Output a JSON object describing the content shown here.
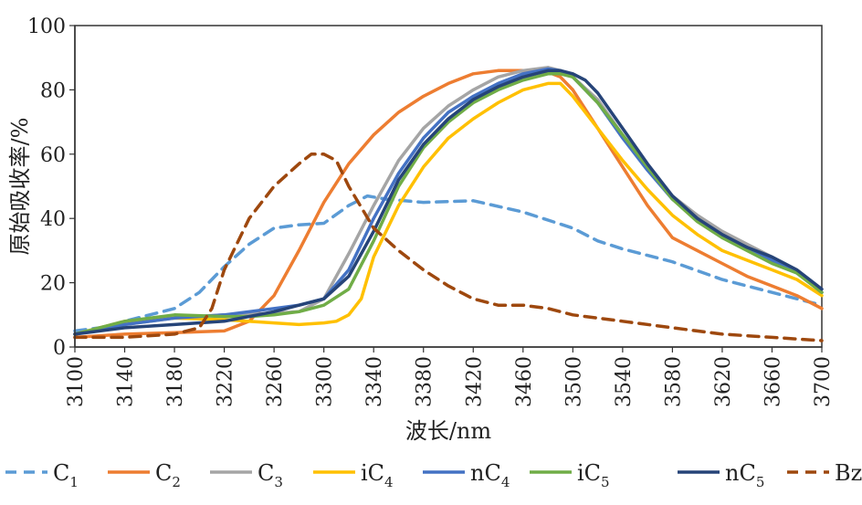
{
  "chart_data": {
    "type": "line",
    "xlabel": "波长/nm",
    "ylabel": "原始吸收率/%",
    "xlim": [
      3100,
      3700
    ],
    "ylim": [
      0,
      100
    ],
    "xticks": [
      3100,
      3140,
      3180,
      3220,
      3260,
      3300,
      3340,
      3380,
      3420,
      3460,
      3500,
      3540,
      3580,
      3620,
      3660,
      3700
    ],
    "yticks": [
      0,
      20,
      40,
      60,
      80,
      100
    ],
    "grid": false,
    "legend_position": "bottom",
    "series": [
      {
        "name": "C",
        "sub": "1",
        "color": "#5b9bd5",
        "dash": "dashed",
        "x": [
          3100,
          3120,
          3140,
          3160,
          3180,
          3200,
          3220,
          3240,
          3260,
          3280,
          3300,
          3320,
          3335,
          3350,
          3380,
          3420,
          3460,
          3500,
          3520,
          3540,
          3580,
          3620,
          3660,
          3700
        ],
        "y": [
          5,
          6,
          8,
          10,
          12,
          17,
          25,
          32,
          37,
          38,
          38.5,
          44,
          47,
          46,
          45,
          45.5,
          42,
          37,
          33,
          30.5,
          26.5,
          21,
          17,
          13
        ]
      },
      {
        "name": "C",
        "sub": "2",
        "color": "#ed7d31",
        "dash": "solid",
        "x": [
          3100,
          3140,
          3180,
          3220,
          3240,
          3260,
          3280,
          3300,
          3320,
          3340,
          3360,
          3380,
          3400,
          3420,
          3440,
          3460,
          3480,
          3490,
          3500,
          3520,
          3540,
          3560,
          3580,
          3600,
          3620,
          3640,
          3660,
          3680,
          3700
        ],
        "y": [
          3,
          4,
          4.5,
          5,
          8,
          16,
          30,
          45,
          57,
          66,
          73,
          78,
          82,
          85,
          86,
          86,
          85.5,
          84,
          80,
          68,
          56,
          44,
          34,
          30,
          26,
          22,
          19,
          16,
          12
        ]
      },
      {
        "name": "C",
        "sub": "3",
        "color": "#a5a5a5",
        "dash": "solid",
        "x": [
          3100,
          3140,
          3180,
          3220,
          3260,
          3280,
          3300,
          3320,
          3340,
          3360,
          3380,
          3400,
          3420,
          3440,
          3460,
          3480,
          3490,
          3500,
          3520,
          3540,
          3560,
          3580,
          3600,
          3620,
          3640,
          3660,
          3680,
          3700
        ],
        "y": [
          4,
          7,
          9,
          10,
          10.5,
          11,
          15,
          29,
          44,
          58,
          68,
          75,
          80,
          84,
          86,
          87,
          86,
          84,
          77,
          66,
          56,
          47,
          41,
          36,
          32,
          28,
          24,
          17
        ]
      },
      {
        "name": "iC",
        "sub": "4",
        "color": "#ffc000",
        "dash": "solid",
        "x": [
          3100,
          3140,
          3180,
          3220,
          3260,
          3280,
          3300,
          3310,
          3320,
          3330,
          3340,
          3360,
          3380,
          3400,
          3420,
          3440,
          3460,
          3480,
          3490,
          3500,
          3520,
          3540,
          3560,
          3580,
          3600,
          3620,
          3640,
          3660,
          3680,
          3700
        ],
        "y": [
          4,
          8,
          9,
          8.5,
          7.5,
          7,
          7.5,
          8,
          10,
          15,
          28,
          44,
          56,
          65,
          71,
          76,
          80,
          82,
          82,
          78,
          68,
          58,
          49,
          41,
          35,
          30,
          27,
          24,
          21,
          16
        ]
      },
      {
        "name": "nC",
        "sub": "4",
        "color": "#4472c4",
        "dash": "solid",
        "x": [
          3100,
          3140,
          3180,
          3220,
          3260,
          3280,
          3300,
          3320,
          3340,
          3360,
          3380,
          3400,
          3420,
          3440,
          3460,
          3480,
          3490,
          3500,
          3520,
          3540,
          3560,
          3580,
          3600,
          3620,
          3640,
          3660,
          3680,
          3700
        ],
        "y": [
          4,
          7,
          9,
          10,
          12,
          13,
          15,
          24,
          40,
          54,
          65,
          73,
          78,
          82,
          85,
          86.5,
          86,
          84,
          76,
          65,
          55,
          46,
          40,
          34,
          31,
          27,
          23,
          17
        ]
      },
      {
        "name": "iC",
        "sub": "5",
        "color": "#70ad47",
        "dash": "solid",
        "x": [
          3100,
          3140,
          3180,
          3220,
          3240,
          3260,
          3280,
          3300,
          3320,
          3340,
          3360,
          3380,
          3400,
          3420,
          3440,
          3460,
          3480,
          3490,
          3500,
          3520,
          3540,
          3560,
          3580,
          3600,
          3620,
          3640,
          3660,
          3680,
          3700
        ],
        "y": [
          4,
          8,
          10,
          9.5,
          9.5,
          10,
          11,
          13,
          18,
          33,
          50,
          62,
          70,
          76,
          80,
          83,
          85,
          85,
          84,
          76,
          66,
          56,
          46,
          39,
          34,
          30,
          26,
          23,
          17
        ]
      },
      {
        "name": "nC",
        "sub": "5",
        "color": "#264478",
        "dash": "solid",
        "x": [
          3100,
          3140,
          3180,
          3220,
          3260,
          3280,
          3300,
          3320,
          3340,
          3360,
          3380,
          3400,
          3420,
          3440,
          3460,
          3480,
          3490,
          3500,
          3510,
          3520,
          3540,
          3560,
          3580,
          3600,
          3620,
          3640,
          3660,
          3680,
          3700
        ],
        "y": [
          4,
          6,
          7,
          8,
          11,
          13,
          15,
          22,
          36,
          52,
          63,
          71,
          77,
          81,
          84,
          86,
          86,
          85,
          83,
          79,
          68,
          57,
          47,
          40,
          35,
          31,
          28,
          24,
          18
        ]
      },
      {
        "name": "Bz",
        "sub": "",
        "color": "#9e480e",
        "dash": "dashed",
        "x": [
          3100,
          3140,
          3180,
          3200,
          3210,
          3220,
          3240,
          3260,
          3280,
          3290,
          3300,
          3310,
          3320,
          3340,
          3360,
          3380,
          3400,
          3420,
          3440,
          3460,
          3480,
          3500,
          3540,
          3580,
          3620,
          3660,
          3700
        ],
        "y": [
          3,
          3,
          4,
          6,
          12,
          24,
          40,
          50,
          57,
          60,
          60,
          58,
          50,
          37,
          30,
          24,
          19,
          15,
          13,
          13,
          12,
          10,
          8,
          6,
          4,
          3,
          2
        ]
      }
    ]
  }
}
